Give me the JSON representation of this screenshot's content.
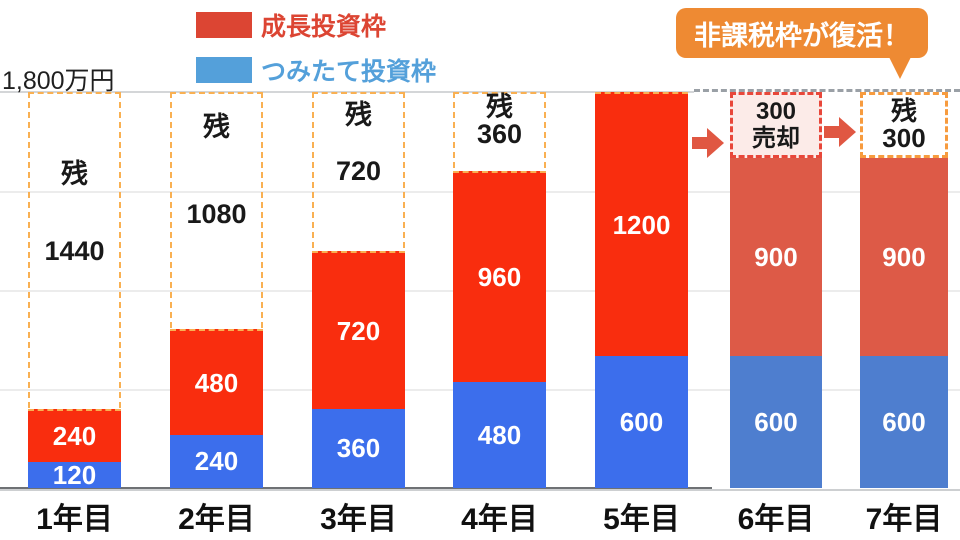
{
  "axis": {
    "ymax_label": "1,800万円"
  },
  "legend": {
    "items": [
      {
        "id": "growth",
        "label": "成長投資枠",
        "color": "#dc4533"
      },
      {
        "id": "tsumitate",
        "label": "つみたて投資枠",
        "color": "#54a0da"
      }
    ]
  },
  "callout": {
    "text": "非課税枠が復活！",
    "bg": "#ee8a33"
  },
  "colors": {
    "growth_bright": "#f92d0e",
    "growth_muted": "#dd5a47",
    "tsumitate_bright": "#3c6eec",
    "tsumitate_muted": "#4e7ecf",
    "frame_dash_orange": "#f9b052",
    "box_dash_orange": "#f79b3e",
    "box_dash_red": "#e8473a",
    "sold_box_fill": "#fcebe8",
    "top_dash_gray": "#9aa0a6",
    "arrow": "#e05742"
  },
  "chart_data": {
    "type": "bar",
    "stacked": true,
    "unit": "万円",
    "ylim": [
      0,
      1800
    ],
    "ymax_label": "1,800万円",
    "grid": true,
    "gridline_values": [
      450,
      900,
      1350
    ],
    "legend_position": "top-left",
    "categories": [
      "1年目",
      "2年目",
      "3年目",
      "4年目",
      "5年目",
      "6年目",
      "7年目"
    ],
    "series": [
      {
        "name": "つみたて投資枠",
        "values": [
          120,
          240,
          360,
          480,
          600,
          600,
          600
        ]
      },
      {
        "name": "成長投資枠",
        "values": [
          240,
          480,
          720,
          960,
          1200,
          900,
          900
        ]
      }
    ],
    "annotations": {
      "remaining_quota": [
        {
          "category": "1年目",
          "prefix": "残",
          "value": 1440
        },
        {
          "category": "2年目",
          "prefix": "残",
          "value": 1080
        },
        {
          "category": "3年目",
          "prefix": "残",
          "value": 720
        },
        {
          "category": "4年目",
          "prefix": "残",
          "value": 360
        },
        {
          "category": "7年目",
          "prefix": "残",
          "value": 300
        }
      ],
      "sold": {
        "category": "6年目",
        "value": 300,
        "label": "売却"
      },
      "callout": "非課税枠が復活！"
    }
  },
  "render": {
    "columns": [
      {
        "frame": "full",
        "palette": "bright",
        "rem_tops": [
          68,
          145
        ]
      },
      {
        "frame": "full",
        "palette": "bright",
        "rem_tops": [
          21,
          108
        ]
      },
      {
        "frame": "full",
        "palette": "bright",
        "rem_tops": [
          9,
          65
        ]
      },
      {
        "frame": "full",
        "palette": "bright",
        "rem_tops": [
          1,
          28
        ]
      },
      {
        "frame": "top",
        "palette": "bright"
      },
      {
        "frame": "sold-box",
        "palette": "muted"
      },
      {
        "frame": "rem-box",
        "palette": "muted"
      }
    ]
  }
}
